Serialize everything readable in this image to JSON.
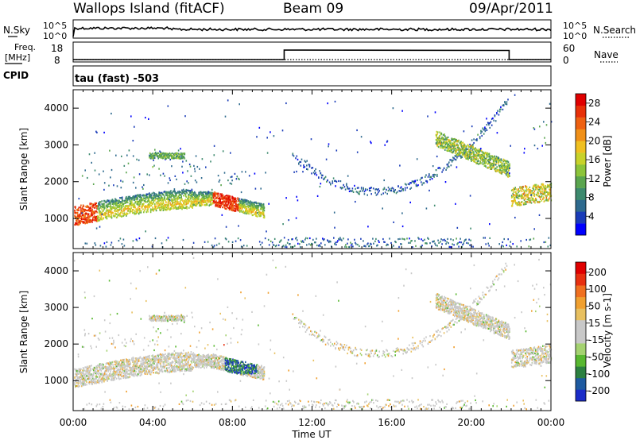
{
  "header": {
    "station": "Wallops Island (fitACF)",
    "beam": "Beam 09",
    "date": "09/Apr/2011"
  },
  "strips": {
    "nsky_label": "N.Sky",
    "nsearch_label": "N.Search",
    "log_ticks": [
      "10^5",
      "10^0"
    ],
    "freq_label_1": "Freq.",
    "freq_label_2": "[MHz]",
    "freq_ticks": [
      "18",
      "8"
    ],
    "nave_label": "Nave",
    "nave_ticks": [
      "60",
      "0"
    ],
    "cpid_label": "CPID",
    "cpid_text": "tau (fast) -503"
  },
  "colors": {
    "power_scale": [
      "#0000ff",
      "#1a3cb8",
      "#2e6a8e",
      "#3d8a6e",
      "#5aa54e",
      "#8cc43a",
      "#c8d22a",
      "#f0c020",
      "#f09018",
      "#ee6010",
      "#e83008",
      "#e00000"
    ],
    "velocity_scale": [
      "#1a2cc8",
      "#1e5aa0",
      "#2c8040",
      "#58b830",
      "#a4d270",
      "#c8c8c8",
      "#c8c8c8",
      "#e8c060",
      "#f0a030",
      "#f07020",
      "#e83010",
      "#e00000"
    ]
  },
  "chart_data": [
    {
      "type": "heatmap",
      "name": "power",
      "xlabel": "",
      "ylabel": "Slant Range [km]",
      "x_ticks": [
        "00:00",
        "04:00",
        "08:00",
        "12:00",
        "16:00",
        "20:00",
        "00:00"
      ],
      "xlim_hours": [
        0,
        24
      ],
      "ylim_km": [
        180,
        4500
      ],
      "y_ticks": [
        1000,
        2000,
        3000,
        4000
      ],
      "colorbar_label": "Power [dB]",
      "colorbar_ticks": [
        "28",
        "24",
        "20",
        "16",
        "12",
        "8",
        "4"
      ],
      "colorbar_range": [
        0,
        30
      ],
      "grid": false
    },
    {
      "type": "heatmap",
      "name": "velocity",
      "xlabel": "Time UT",
      "ylabel": "Slant Range [km]",
      "x_ticks": [
        "00:00",
        "04:00",
        "08:00",
        "12:00",
        "16:00",
        "20:00",
        "00:00"
      ],
      "xlim_hours": [
        0,
        24
      ],
      "ylim_km": [
        180,
        4500
      ],
      "y_ticks": [
        1000,
        2000,
        3000,
        4000
      ],
      "colorbar_label": "Velocity [m s-1]",
      "colorbar_ticks": [
        "200",
        "100",
        "50",
        "15",
        "-15",
        "-50",
        "-100",
        "-200"
      ],
      "colorbar_range": [
        -250,
        250
      ],
      "grid": false
    }
  ]
}
